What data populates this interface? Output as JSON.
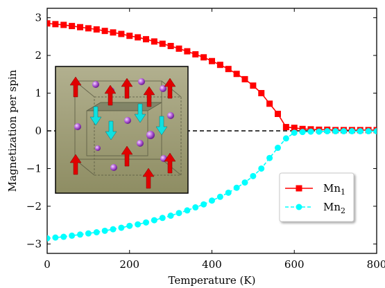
{
  "chart_data": {
    "type": "line",
    "xlabel": "Temperature (K)",
    "ylabel": "Magnetization per spin",
    "xlim": [
      0,
      800
    ],
    "ylim": [
      -3.25,
      3.25
    ],
    "xticks": [
      "0",
      "200",
      "400",
      "600",
      "800"
    ],
    "yticks": [
      "−3",
      "−2",
      "−1",
      "0",
      "1",
      "2",
      "3"
    ],
    "grid": false,
    "legend_position": "lower-right",
    "reference_line": {
      "y": 0,
      "style": "dashed",
      "color": "#000000"
    },
    "inset": {
      "description_icon": "crystal-lattice-image",
      "position": "left-middle"
    },
    "series": [
      {
        "name": "Mn",
        "subscript": "1",
        "color": "#ff0000",
        "marker": "square",
        "linestyle": "solid",
        "x": [
          0,
          20,
          40,
          60,
          80,
          100,
          120,
          140,
          160,
          180,
          200,
          220,
          240,
          260,
          280,
          300,
          320,
          340,
          360,
          380,
          400,
          420,
          440,
          460,
          480,
          500,
          520,
          540,
          560,
          580,
          600,
          620,
          640,
          660,
          680,
          700,
          720,
          740,
          760,
          780,
          800
        ],
        "y": [
          2.85,
          2.83,
          2.81,
          2.78,
          2.75,
          2.72,
          2.69,
          2.65,
          2.61,
          2.57,
          2.52,
          2.48,
          2.43,
          2.37,
          2.31,
          2.25,
          2.18,
          2.11,
          2.03,
          1.95,
          1.85,
          1.75,
          1.64,
          1.51,
          1.37,
          1.2,
          1.0,
          0.72,
          0.45,
          0.1,
          0.08,
          0.05,
          0.04,
          0.03,
          0.03,
          0.02,
          0.02,
          0.02,
          0.02,
          0.02,
          0.02
        ]
      },
      {
        "name": "Mn",
        "subscript": "2",
        "color": "#00ffff",
        "marker": "circle",
        "linestyle": "dashed",
        "x": [
          0,
          20,
          40,
          60,
          80,
          100,
          120,
          140,
          160,
          180,
          200,
          220,
          240,
          260,
          280,
          300,
          320,
          340,
          360,
          380,
          400,
          420,
          440,
          460,
          480,
          500,
          520,
          540,
          560,
          580,
          600,
          620,
          640,
          660,
          680,
          700,
          720,
          740,
          760,
          780,
          800
        ],
        "y": [
          -2.85,
          -2.83,
          -2.81,
          -2.78,
          -2.75,
          -2.72,
          -2.69,
          -2.65,
          -2.61,
          -2.57,
          -2.52,
          -2.48,
          -2.43,
          -2.37,
          -2.31,
          -2.25,
          -2.18,
          -2.11,
          -2.03,
          -1.95,
          -1.85,
          -1.75,
          -1.64,
          -1.51,
          -1.37,
          -1.2,
          -1.0,
          -0.72,
          -0.45,
          -0.2,
          -0.05,
          -0.03,
          -0.02,
          -0.02,
          -0.01,
          -0.01,
          -0.01,
          -0.01,
          -0.01,
          -0.01,
          -0.01
        ]
      }
    ]
  }
}
